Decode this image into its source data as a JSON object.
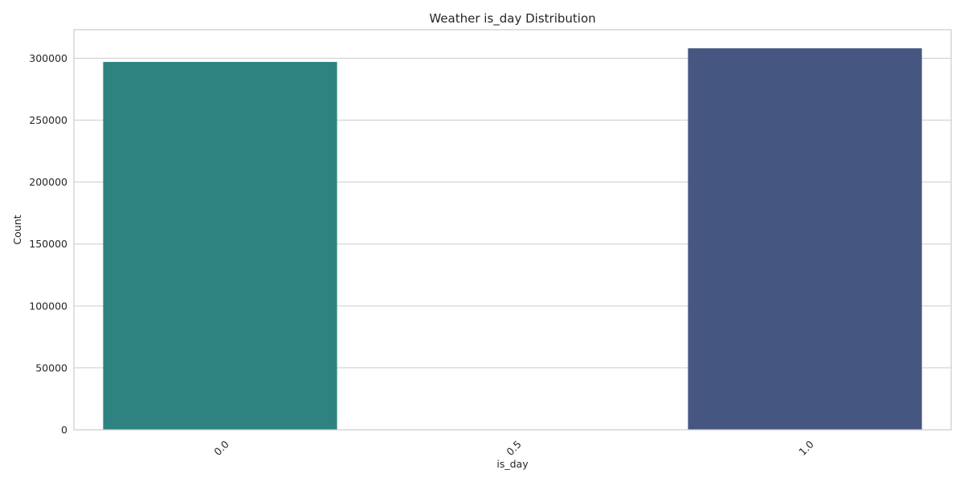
{
  "chart_data": {
    "type": "bar",
    "title": "Weather is_day Distribution",
    "xlabel": "is_day",
    "ylabel": "Count",
    "categories": [
      "0.0",
      "0.5",
      "1.0"
    ],
    "values": [
      297000,
      0,
      308000
    ],
    "bar_colors": [
      "#2e8380",
      "#2e8380",
      "#455781"
    ],
    "ylim": [
      0,
      323000
    ],
    "yticks": [
      0,
      50000,
      100000,
      150000,
      200000,
      250000,
      300000
    ],
    "ytick_labels": [
      "0",
      "50000",
      "100000",
      "150000",
      "200000",
      "250000",
      "300000"
    ],
    "grid": true,
    "xtick_rotation": -45,
    "legend": null
  }
}
